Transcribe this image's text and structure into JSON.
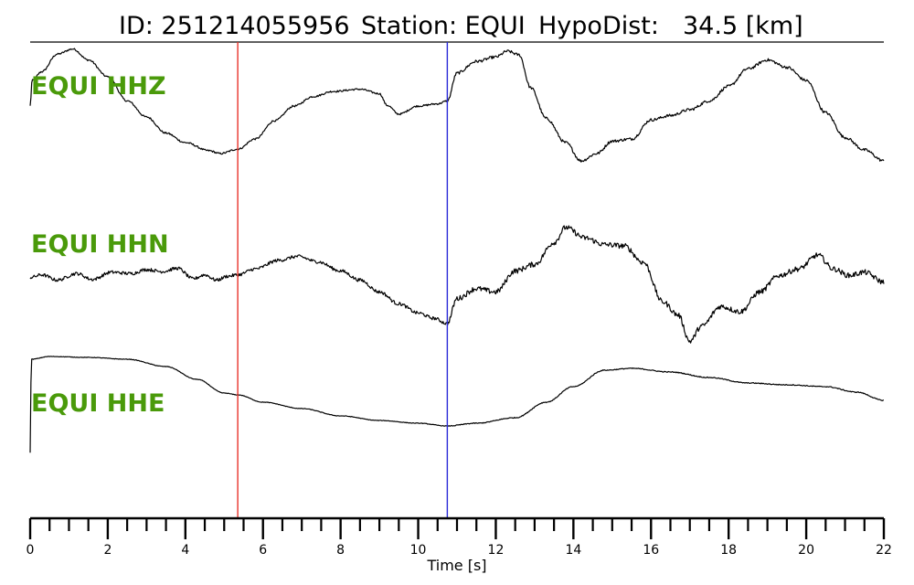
{
  "chart_data": {
    "type": "line",
    "title_parts": [
      "ID: 251214055956",
      "Station: EQUI",
      "HypoDist:",
      "34.5 [km]"
    ],
    "xlabel": "Time [s]",
    "xlim": [
      0,
      22
    ],
    "xticks": [
      0,
      2,
      4,
      6,
      8,
      10,
      12,
      14,
      16,
      18,
      20,
      22
    ],
    "minor_tick_step": 0.5,
    "grid": false,
    "label_color": "#4a9a0a",
    "pick_lines": [
      {
        "time": 5.35,
        "color": "#e8322a"
      },
      {
        "time": 10.75,
        "color": "#2b2bd8"
      }
    ],
    "series": [
      {
        "name": "EQUI HHZ",
        "noise": 0.012,
        "points": [
          [
            0,
            0.15
          ],
          [
            0.05,
            0.5
          ],
          [
            0.3,
            0.62
          ],
          [
            0.7,
            0.86
          ],
          [
            1.1,
            0.93
          ],
          [
            1.5,
            0.78
          ],
          [
            2.0,
            0.55
          ],
          [
            2.5,
            0.22
          ],
          [
            3.0,
            0.0
          ],
          [
            3.5,
            -0.22
          ],
          [
            4.0,
            -0.35
          ],
          [
            4.6,
            -0.46
          ],
          [
            4.9,
            -0.5
          ],
          [
            5.35,
            -0.44
          ],
          [
            5.8,
            -0.3
          ],
          [
            6.3,
            -0.05
          ],
          [
            6.8,
            0.15
          ],
          [
            7.3,
            0.28
          ],
          [
            7.8,
            0.35
          ],
          [
            8.5,
            0.38
          ],
          [
            9.0,
            0.32
          ],
          [
            9.2,
            0.16
          ],
          [
            9.5,
            0.04
          ],
          [
            10.0,
            0.15
          ],
          [
            10.5,
            0.18
          ],
          [
            10.75,
            0.22
          ],
          [
            11.0,
            0.6
          ],
          [
            11.5,
            0.76
          ],
          [
            12.0,
            0.82
          ],
          [
            12.3,
            0.9
          ],
          [
            12.6,
            0.85
          ],
          [
            12.9,
            0.4
          ],
          [
            13.3,
            -0.02
          ],
          [
            13.8,
            -0.35
          ],
          [
            14.2,
            -0.6
          ],
          [
            14.6,
            -0.5
          ],
          [
            15.0,
            -0.33
          ],
          [
            15.5,
            -0.3
          ],
          [
            16.0,
            -0.04
          ],
          [
            16.5,
            0.02
          ],
          [
            17.0,
            0.1
          ],
          [
            17.5,
            0.22
          ],
          [
            18.0,
            0.42
          ],
          [
            18.5,
            0.66
          ],
          [
            19.0,
            0.78
          ],
          [
            19.5,
            0.68
          ],
          [
            20.0,
            0.5
          ],
          [
            20.5,
            0.06
          ],
          [
            21.0,
            -0.28
          ],
          [
            21.5,
            -0.45
          ],
          [
            22.0,
            -0.6
          ]
        ]
      },
      {
        "name": "EQUI HHN",
        "noise": 0.025,
        "points": [
          [
            0,
            0.02
          ],
          [
            0.3,
            0.06
          ],
          [
            0.7,
            -0.02
          ],
          [
            1.2,
            0.08
          ],
          [
            1.6,
            -0.01
          ],
          [
            2.1,
            0.1
          ],
          [
            2.6,
            0.08
          ],
          [
            3.0,
            0.14
          ],
          [
            3.4,
            0.11
          ],
          [
            3.8,
            0.16
          ],
          [
            4.2,
            0.0
          ],
          [
            4.5,
            0.06
          ],
          [
            4.8,
            -0.02
          ],
          [
            5.1,
            0.04
          ],
          [
            5.35,
            0.06
          ],
          [
            5.8,
            0.15
          ],
          [
            6.4,
            0.28
          ],
          [
            6.9,
            0.34
          ],
          [
            7.4,
            0.26
          ],
          [
            8.0,
            0.12
          ],
          [
            8.5,
            -0.02
          ],
          [
            9.0,
            -0.2
          ],
          [
            9.5,
            -0.38
          ],
          [
            10.0,
            -0.52
          ],
          [
            10.4,
            -0.6
          ],
          [
            10.75,
            -0.68
          ],
          [
            11.0,
            -0.3
          ],
          [
            11.5,
            -0.15
          ],
          [
            12.0,
            -0.2
          ],
          [
            12.5,
            0.12
          ],
          [
            13.0,
            0.22
          ],
          [
            13.5,
            0.55
          ],
          [
            13.8,
            0.78
          ],
          [
            14.3,
            0.62
          ],
          [
            14.8,
            0.52
          ],
          [
            15.3,
            0.5
          ],
          [
            15.8,
            0.25
          ],
          [
            16.3,
            -0.35
          ],
          [
            16.7,
            -0.55
          ],
          [
            17.0,
            -0.95
          ],
          [
            17.3,
            -0.72
          ],
          [
            17.8,
            -0.42
          ],
          [
            18.3,
            -0.5
          ],
          [
            18.8,
            -0.2
          ],
          [
            19.3,
            0.05
          ],
          [
            19.8,
            0.15
          ],
          [
            20.3,
            0.36
          ],
          [
            20.7,
            0.15
          ],
          [
            21.1,
            0.05
          ],
          [
            21.5,
            0.1
          ],
          [
            22.0,
            -0.05
          ]
        ]
      },
      {
        "name": "EQUI HHE",
        "noise": 0.003,
        "points": [
          [
            0,
            -0.6
          ],
          [
            0.03,
            0.42
          ],
          [
            0.5,
            0.45
          ],
          [
            1.5,
            0.44
          ],
          [
            2.5,
            0.42
          ],
          [
            3.5,
            0.34
          ],
          [
            4.3,
            0.2
          ],
          [
            5.0,
            0.05
          ],
          [
            5.35,
            0.03
          ],
          [
            6.0,
            -0.05
          ],
          [
            7.0,
            -0.12
          ],
          [
            8.0,
            -0.2
          ],
          [
            9.0,
            -0.25
          ],
          [
            10.0,
            -0.28
          ],
          [
            10.75,
            -0.31
          ],
          [
            11.5,
            -0.28
          ],
          [
            12.5,
            -0.22
          ],
          [
            13.3,
            -0.05
          ],
          [
            14.0,
            0.12
          ],
          [
            14.8,
            0.3
          ],
          [
            15.5,
            0.32
          ],
          [
            16.5,
            0.28
          ],
          [
            17.5,
            0.22
          ],
          [
            18.5,
            0.16
          ],
          [
            19.5,
            0.14
          ],
          [
            20.5,
            0.12
          ],
          [
            21.3,
            0.06
          ],
          [
            22.0,
            -0.03
          ]
        ]
      }
    ]
  }
}
